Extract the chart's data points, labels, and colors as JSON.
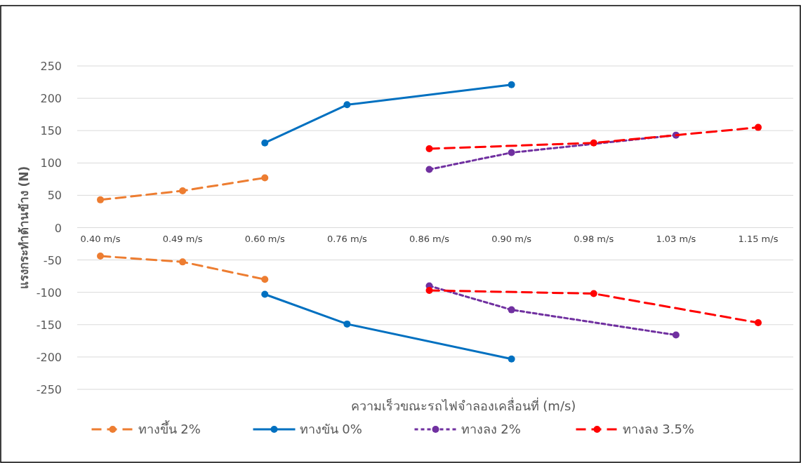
{
  "chart_data": {
    "type": "line",
    "xlabel": "ความเร็วขณะรถไฟจำลองเคลื่อนที่ (m/s)",
    "ylabel": "แรงกระทำด้านข้าง (N)",
    "categories": [
      "0.40 m/s",
      "0.49 m/s",
      "0.60 m/s",
      "0.76 m/s",
      "0.86 m/s",
      "0.90 m/s",
      "0.98 m/s",
      "1.03 m/s",
      "1.15 m/s"
    ],
    "series": [
      {
        "name": "ทางขึ้น 2%",
        "color": "#ed7d31",
        "line_style": "dashed",
        "values": [
          43,
          57,
          77,
          null,
          null,
          null,
          null,
          null,
          null
        ]
      },
      {
        "name": "ทางขัน 0%",
        "color": "#0070c0",
        "line_style": "solid",
        "values": [
          null,
          null,
          131,
          190,
          null,
          221,
          null,
          null,
          null
        ]
      },
      {
        "name": "ทางลง 2%",
        "color": "#7030a0",
        "line_style": "dotted",
        "values": [
          null,
          null,
          null,
          null,
          90,
          116,
          null,
          143,
          null
        ]
      },
      {
        "name": "ทางลง 3.5%",
        "color": "#ff0000",
        "line_style": "dashed",
        "values": [
          null,
          null,
          null,
          null,
          122,
          null,
          131,
          null,
          155
        ]
      },
      {
        "color": "#ed7d31",
        "line_style": "dashed",
        "values": [
          -44,
          -53,
          -80,
          null,
          null,
          null,
          null,
          null,
          null
        ]
      },
      {
        "color": "#0070c0",
        "line_style": "solid",
        "values": [
          null,
          null,
          -103,
          -149,
          null,
          -203,
          null,
          null,
          null
        ]
      },
      {
        "color": "#7030a0",
        "line_style": "dotted",
        "values": [
          null,
          null,
          null,
          null,
          -90,
          -127,
          null,
          -166,
          null
        ]
      },
      {
        "color": "#ff0000",
        "line_style": "dashed",
        "values": [
          null,
          null,
          null,
          null,
          -97,
          null,
          -102,
          null,
          -147
        ]
      }
    ],
    "ylim": [
      -250,
      250
    ],
    "yticks": [
      -250,
      -200,
      -150,
      -100,
      -50,
      0,
      50,
      100,
      150,
      200,
      250
    ],
    "grid": "y",
    "legend": "bottom",
    "marker": "circle"
  }
}
